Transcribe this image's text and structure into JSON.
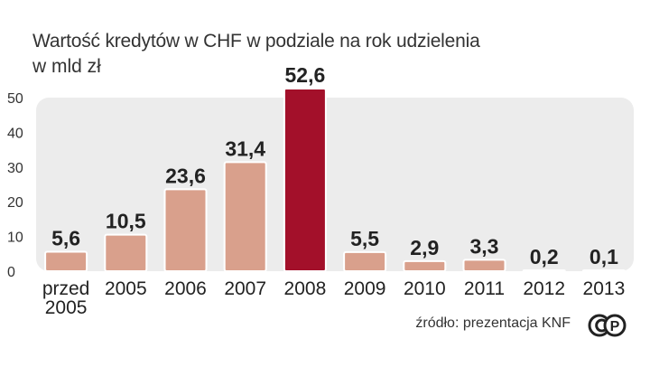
{
  "title": "Wartość kredytów w CHF w podziale na rok udzielenia",
  "subtitle": "w mld zł",
  "source": "źródło: prezentacja KNF",
  "colors": {
    "bar": "#d9a08c",
    "highlight": "#a3102a",
    "plot_bg": "#ececec",
    "bar_border": "#ffffff"
  },
  "logo": {
    "icon": "copyright-pap-icon",
    "text": "P"
  },
  "chart_data": {
    "type": "bar",
    "title": "Wartość kredytów w CHF w podziale na rok udzielenia",
    "ylabel": "w mld zł",
    "xlabel": "",
    "categories": [
      [
        "przed",
        "2005"
      ],
      [
        "2005"
      ],
      [
        "2006"
      ],
      [
        "2007"
      ],
      [
        "2008"
      ],
      [
        "2009"
      ],
      [
        "2010"
      ],
      [
        "2011"
      ],
      [
        "2012"
      ],
      [
        "2013"
      ]
    ],
    "values": [
      5.6,
      10.5,
      23.6,
      31.4,
      52.6,
      5.5,
      2.9,
      3.3,
      0.2,
      0.1
    ],
    "value_labels": [
      "5,6",
      "10,5",
      "23,6",
      "31,4",
      "52,6",
      "5,5",
      "2,9",
      "3,3",
      "0,2",
      "0,1"
    ],
    "highlight_index": 4,
    "ylim": [
      0,
      50
    ],
    "yticks": [
      0,
      10,
      20,
      30,
      40,
      50
    ],
    "grid": false,
    "legend": "none"
  }
}
